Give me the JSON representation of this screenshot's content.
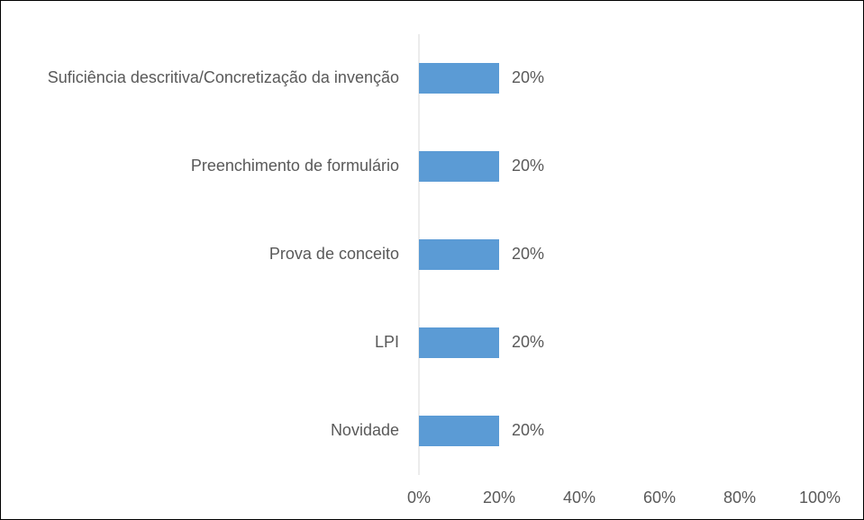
{
  "chart_data": {
    "type": "barh",
    "categories": [
      "Suficiência descritiva/Concretização da invenção",
      "Preenchimento de formulário",
      "Prova de conceito",
      "LPI",
      "Novidade"
    ],
    "values": [
      20,
      20,
      20,
      20,
      20
    ],
    "value_labels": [
      "20%",
      "20%",
      "20%",
      "20%",
      "20%"
    ],
    "color": "#5b9bd5",
    "xlim": [
      0,
      100
    ],
    "xticks": [
      {
        "value": 0,
        "label": "0%"
      },
      {
        "value": 20,
        "label": "20%"
      },
      {
        "value": 40,
        "label": "40%"
      },
      {
        "value": 60,
        "label": "60%"
      },
      {
        "value": 80,
        "label": "80%"
      },
      {
        "value": 100,
        "label": "100%"
      }
    ],
    "grid": false
  }
}
